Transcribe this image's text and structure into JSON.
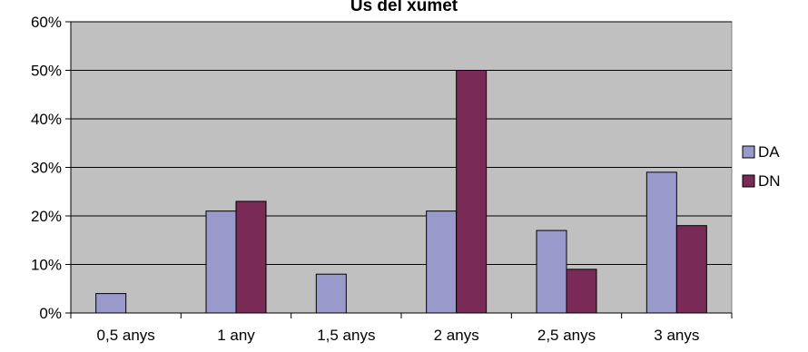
{
  "chart_data": {
    "type": "bar",
    "title": "Ús del xumet",
    "categories": [
      "0,5 anys",
      "1 any",
      "1,5 anys",
      "2 anys",
      "2,5 anys",
      "3 anys"
    ],
    "series": [
      {
        "name": "DA",
        "color": "#9999cc",
        "values": [
          4,
          21,
          8,
          21,
          17,
          29
        ]
      },
      {
        "name": "DN",
        "color": "#7a2a56",
        "values": [
          null,
          23,
          null,
          50,
          9,
          18
        ]
      }
    ],
    "y_ticks": [
      "0%",
      "10%",
      "20%",
      "30%",
      "40%",
      "50%",
      "60%"
    ],
    "ylim": [
      0,
      60
    ],
    "y_unit": "%",
    "grid": true,
    "legend_position": "right",
    "plot_background": "#c0c0c0",
    "gridline_color": "#000000"
  }
}
